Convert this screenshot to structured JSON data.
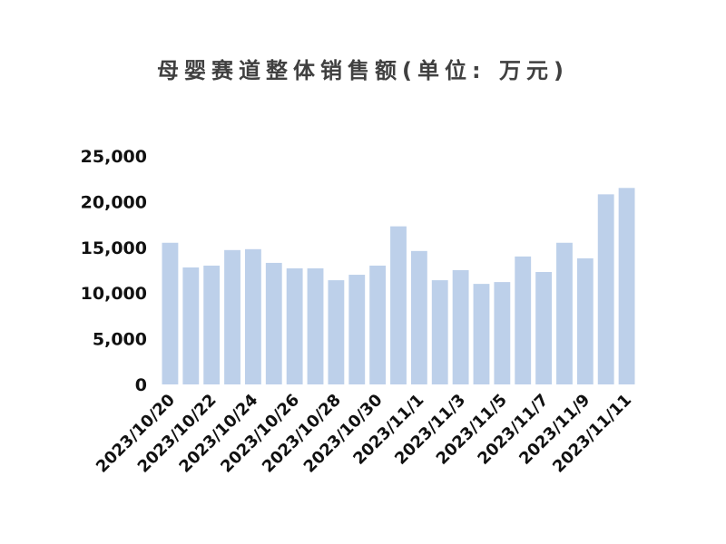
{
  "chart_data": {
    "type": "bar",
    "title": "母婴赛道整体销售额(单位: 万元)",
    "categories": [
      "2023/10/20",
      "2023/10/21",
      "2023/10/22",
      "2023/10/23",
      "2023/10/24",
      "2023/10/25",
      "2023/10/26",
      "2023/10/27",
      "2023/10/28",
      "2023/10/29",
      "2023/10/30",
      "2023/10/31",
      "2023/11/1",
      "2023/11/2",
      "2023/11/3",
      "2023/11/4",
      "2023/11/5",
      "2023/11/6",
      "2023/11/7",
      "2023/11/8",
      "2023/11/9",
      "2023/11/10",
      "2023/11/11"
    ],
    "x_tick_labels": [
      "2023/10/20",
      "2023/10/22",
      "2023/10/24",
      "2023/10/26",
      "2023/10/28",
      "2023/10/30",
      "2023/11/1",
      "2023/11/3",
      "2023/11/5",
      "2023/11/7",
      "2023/11/9",
      "2023/11/11"
    ],
    "values": [
      15500,
      12800,
      13000,
      14700,
      14800,
      13300,
      12700,
      12700,
      11400,
      12000,
      13000,
      17300,
      14600,
      11400,
      12500,
      11000,
      11200,
      14000,
      12300,
      15500,
      13800,
      20800,
      21500
    ],
    "y_ticks": [
      "0",
      "5,000",
      "10,000",
      "15,000",
      "20,000",
      "25,000"
    ],
    "ylim": [
      0,
      25000
    ],
    "xlabel": "",
    "ylabel": "",
    "grid": false,
    "colors": {
      "bar": "#bdd0ea",
      "text": "#111111",
      "title": "#404040"
    }
  }
}
